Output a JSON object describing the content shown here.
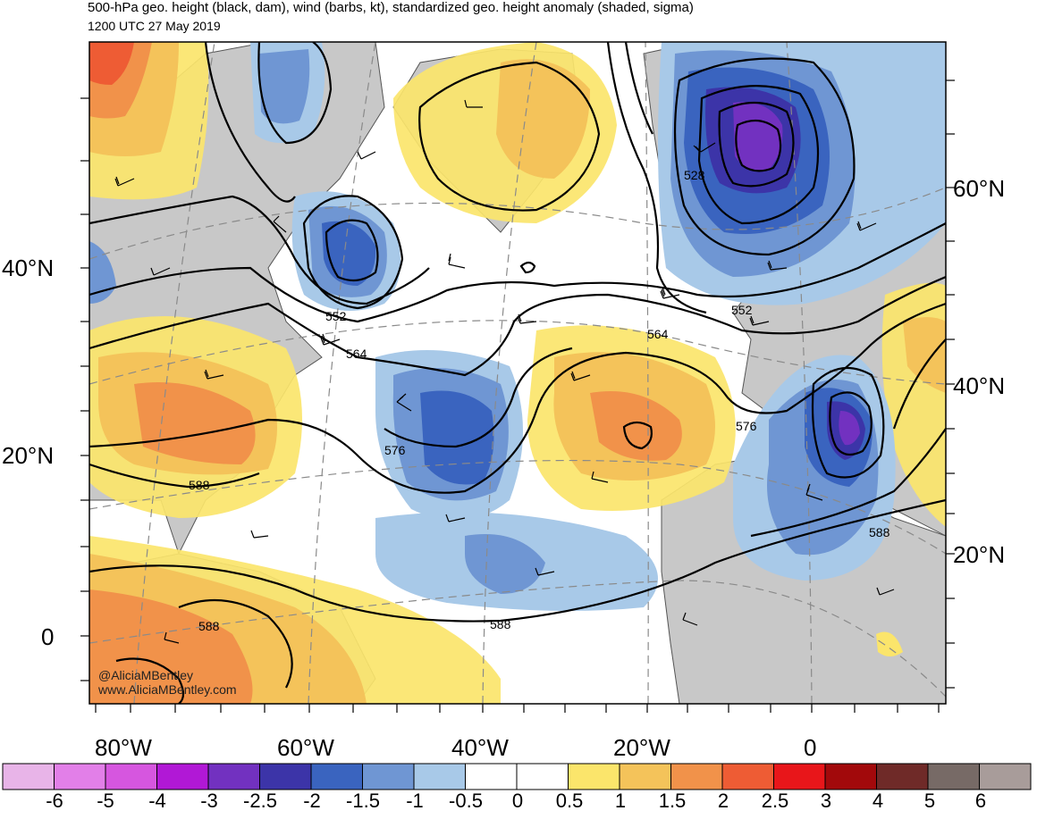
{
  "header": {
    "title": "500-hPa geo. height (black, dam), wind (barbs, kt), standardized geo. height anomaly (shaded, sigma)",
    "valid_time": "1200 UTC 27 May 2019"
  },
  "map": {
    "region": "North Atlantic",
    "land_color": "#c8c8c8",
    "ocean_color": "#ffffff",
    "latitude_labels_left": [
      "40°N",
      "20°N",
      "0"
    ],
    "latitude_labels_right": [
      "60°N",
      "40°N",
      "20°N"
    ],
    "longitude_labels": [
      "80°W",
      "60°W",
      "40°W",
      "20°W",
      "0"
    ],
    "contour_labels": [
      "528",
      "552",
      "552",
      "564",
      "564",
      "576",
      "576",
      "588",
      "588",
      "588",
      "588"
    ]
  },
  "colorbar": {
    "colors": [
      "#e8b4e8",
      "#e27fe8",
      "#d656df",
      "#b118d6",
      "#7231c0",
      "#3c34a8",
      "#3a64bf",
      "#6f96d3",
      "#a8c9e8",
      "#ffffff",
      "#ffffff",
      "#fbe56b",
      "#f4c35a",
      "#f1924a",
      "#ee5c34",
      "#e8161a",
      "#a2090b",
      "#6f2a28",
      "#776a66",
      "#a89c9a"
    ],
    "labels": [
      "-6",
      "-5",
      "-4",
      "-3",
      "-2.5",
      "-2",
      "-1.5",
      "-1",
      "-0.5",
      "0",
      "0.5",
      "1",
      "1.5",
      "2",
      "2.5",
      "3",
      "4",
      "5",
      "6"
    ]
  },
  "credit": {
    "handle": "@AliciaMBentley",
    "website": "www.AliciaMBentley.com"
  }
}
